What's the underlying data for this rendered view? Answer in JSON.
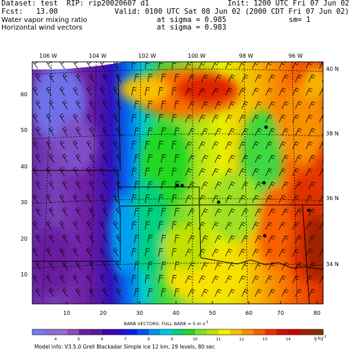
{
  "header": {
    "dataset": "Dataset: test  RIP: rip20020607 d1",
    "init": "Init: 1200 UTC Fri 07 Jun 02",
    "fcst": "Fcst:   13.00",
    "valid": "Valid: 0100 UTC Sat 08 Jun 02 (2000 CDT Fri 07 Jun 02)",
    "field1": "Water vapor mixing ratio",
    "field1_level": "at sigma = 0.985",
    "field1_sm": "sm= 1",
    "field2": "Horizontal wind vectors",
    "field2_level": "at sigma = 0.983"
  },
  "map": {
    "lon_labels": [
      "106 W",
      "104 W",
      "102 W",
      "100 W",
      "98 W",
      "96 W"
    ],
    "lat_labels": [
      "40 N",
      "38 N",
      "36 N",
      "34 N"
    ],
    "x_ticks": [
      "10",
      "20",
      "30",
      "40",
      "50",
      "60",
      "70",
      "80"
    ],
    "y_ticks": [
      "10",
      "20",
      "30",
      "40",
      "50",
      "60"
    ],
    "barbs_caption": "BARB VECTORS:  FULL BARB = 5 m s",
    "barbs_exp": "-1"
  },
  "colorbar": {
    "labels": [
      "4",
      "5",
      "6",
      "7",
      "8",
      "9",
      "10",
      "11",
      "12",
      "13",
      "14"
    ],
    "units": "g kg",
    "units_exp": "-1",
    "colors": [
      "#7a7af0",
      "#8a6ad8",
      "#9a6acd",
      "#8a4ab8",
      "#6a20a0",
      "#5a1aa0",
      "#3a0aa8",
      "#2a0ad0",
      "#0020e8",
      "#0050f0",
      "#0090f0",
      "#00c8e0",
      "#00d080",
      "#20d820",
      "#80e020",
      "#c0e000",
      "#f0f000",
      "#f8c000",
      "#f89000",
      "#f86000",
      "#f03000",
      "#d01000",
      "#c80000",
      "#a02000",
      "#803000"
    ]
  },
  "footer": {
    "model_info": "Model info: V3.5.0  Grell     Blackadar  Simple ice    12 km,  29 levels,   80 sec"
  }
}
